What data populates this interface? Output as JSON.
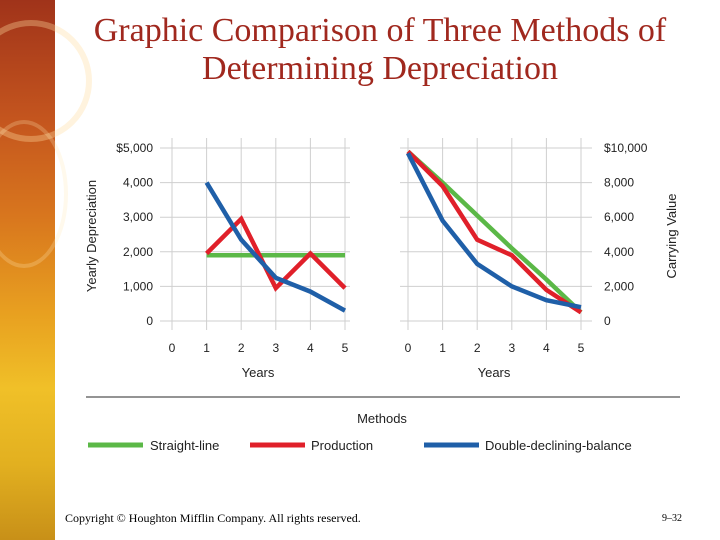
{
  "title": "Graphic Comparison of Three Methods of Determining Depreciation",
  "footer": {
    "copyright": "Copyright © Houghton Mifflin Company. All rights reserved.",
    "page": "9–32"
  },
  "legend_title": "Methods",
  "colors": {
    "straight_line": "#5bb847",
    "production": "#e0202a",
    "double_declining": "#1f5fa8",
    "title": "#a0281e",
    "grid": "#cfcfcf"
  },
  "chart_data": [
    {
      "type": "line",
      "xlabel": "Years",
      "ylabel": "Yearly Depreciation",
      "x_ticks": [
        "0",
        "1",
        "2",
        "3",
        "4",
        "5"
      ],
      "y_ticks": [
        "0",
        "1,000",
        "2,000",
        "3,000",
        "4,000",
        "$5,000"
      ],
      "xlim": [
        0,
        5
      ],
      "ylim": [
        0,
        5000
      ],
      "grid": true,
      "legend": "bottom",
      "series": [
        {
          "name": "Straight-line",
          "x": [
            1,
            2,
            3,
            4,
            5
          ],
          "values": [
            1900,
            1900,
            1900,
            1900,
            1900
          ]
        },
        {
          "name": "Production",
          "x": [
            1,
            2,
            3,
            4,
            5
          ],
          "values": [
            1950,
            2950,
            950,
            1950,
            950
          ]
        },
        {
          "name": "Double-declining-balance",
          "x": [
            1,
            2,
            3,
            4,
            5
          ],
          "values": [
            4000,
            2350,
            1250,
            850,
            300
          ]
        }
      ]
    },
    {
      "type": "line",
      "xlabel": "Years",
      "ylabel": "Carrying Value",
      "x_ticks": [
        "0",
        "1",
        "2",
        "3",
        "4",
        "5"
      ],
      "y_ticks": [
        "0",
        "2,000",
        "4,000",
        "6,000",
        "8,000",
        "$10,000"
      ],
      "xlim": [
        0,
        5
      ],
      "ylim": [
        0,
        10000
      ],
      "grid": true,
      "legend": "bottom",
      "series": [
        {
          "name": "Straight-line",
          "x": [
            0,
            1,
            2,
            3,
            4,
            5
          ],
          "values": [
            9800,
            8000,
            6100,
            4200,
            2400,
            500
          ]
        },
        {
          "name": "Production",
          "x": [
            0,
            1,
            2,
            3,
            4,
            5
          ],
          "values": [
            9800,
            7800,
            4700,
            3800,
            1800,
            500
          ]
        },
        {
          "name": "Double-declining-balance",
          "x": [
            0,
            1,
            2,
            3,
            4,
            5
          ],
          "values": [
            9700,
            5800,
            3300,
            2000,
            1200,
            800
          ]
        }
      ]
    }
  ]
}
